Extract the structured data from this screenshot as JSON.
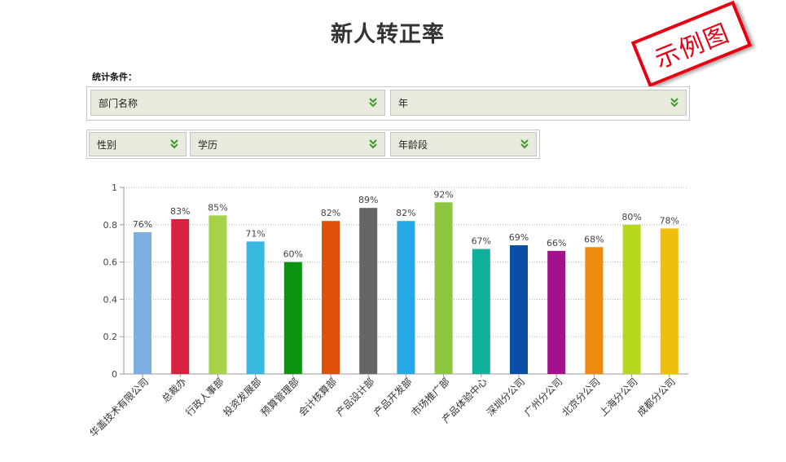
{
  "page": {
    "title": "新人转正率",
    "stamp_text": "示例图",
    "filter_label": "统计条件："
  },
  "filters": {
    "department": "部门名称",
    "year": "年",
    "gender": "性别",
    "education": "学历",
    "age_group": "年龄段",
    "chevron_icon": "double-chevron-down-icon"
  },
  "colors": {
    "chevron": "#3a9a2a",
    "stamp": "#e60012"
  },
  "chart_data": {
    "type": "bar",
    "categories": [
      "华盖技术有限公司",
      "总裁办",
      "行政人事部",
      "投资发展部",
      "预算管理部",
      "会计核算部",
      "产品设计部",
      "产品开发部",
      "市场推广部",
      "产品体验中心",
      "深圳分公司",
      "广州分公司",
      "北京分公司",
      "上海分公司",
      "成都分公司"
    ],
    "values": [
      0.76,
      0.83,
      0.85,
      0.71,
      0.6,
      0.82,
      0.89,
      0.82,
      0.92,
      0.67,
      0.69,
      0.66,
      0.68,
      0.8,
      0.78
    ],
    "labels": [
      "76%",
      "83%",
      "85%",
      "71%",
      "60%",
      "82%",
      "89%",
      "82%",
      "92%",
      "67%",
      "69%",
      "66%",
      "68%",
      "80%",
      "78%"
    ],
    "colors": [
      "#7db0e0",
      "#d8203f",
      "#a8d14a",
      "#38b8e0",
      "#0a9410",
      "#e0500a",
      "#666666",
      "#26a8e6",
      "#8dc63f",
      "#10b09a",
      "#0a4fa5",
      "#a5108c",
      "#ef8a0c",
      "#b3d81e",
      "#f0be0c"
    ],
    "yticks": [
      "0",
      "0.2",
      "0.4",
      "0.6",
      "0.8",
      "1"
    ],
    "ylim": [
      0,
      1
    ],
    "grid": true
  }
}
